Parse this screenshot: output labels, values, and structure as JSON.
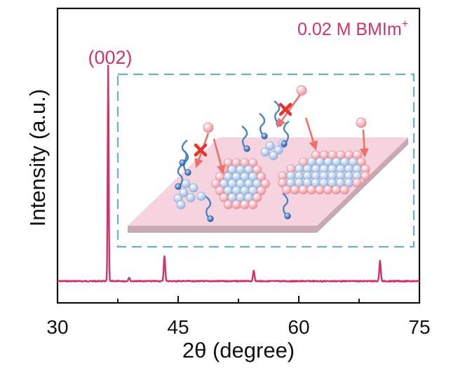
{
  "chart_data": {
    "type": "line",
    "title": "",
    "xlabel": "2θ (degree)",
    "ylabel": "Intensity (a.u.)",
    "xlim": [
      30,
      75
    ],
    "x_ticks": [
      30,
      45,
      60,
      75
    ],
    "x_tick_labels": [
      "30",
      "45",
      "60",
      "75"
    ],
    "y_ticks_shown": false,
    "grid": false,
    "legend": {
      "position": "top-right",
      "entries": [
        {
          "label": "0.02 M BMIm",
          "superscript": "+",
          "color": "#d0336b"
        }
      ]
    },
    "series": [
      {
        "name": "0.02 M BMIm+",
        "color": "#d0336b",
        "baseline": 1.0,
        "peaks": [
          {
            "x": 36.3,
            "height": 100,
            "label": "(002)"
          },
          {
            "x": 38.9,
            "height": 1.7
          },
          {
            "x": 43.3,
            "height": 11.5
          },
          {
            "x": 54.4,
            "height": 4.9
          },
          {
            "x": 70.1,
            "height": 9.5
          }
        ]
      }
    ]
  },
  "legend_text": "0.02 M BMIm",
  "legend_sup": "+",
  "peak_label": "(002)",
  "colors": {
    "trace": "#d0336b",
    "inset_border": "#6aaec8",
    "plane": "#f6d4df",
    "plane_side": "#c7a8b4",
    "blue_atom": "#a9c3e6",
    "pink_atom": "#f2a2ad",
    "arrow": "#f07068",
    "cross": "#e8332c",
    "molecule_tail": "#4d83c0",
    "molecule_head": "#2a63b0"
  }
}
